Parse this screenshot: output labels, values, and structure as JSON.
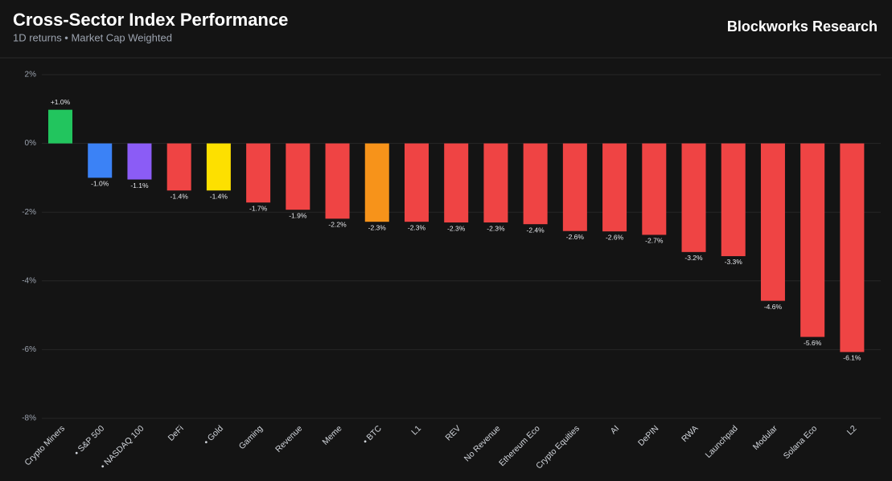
{
  "chart_data": {
    "type": "bar",
    "title": "Cross-Sector Index Performance",
    "subtitle": "1D returns • Market Cap Weighted",
    "brand": "Blockworks Research",
    "categories": [
      "Crypto Miners",
      "• S&P 500",
      "• NASDAQ 100",
      "DeFi",
      "• Gold",
      "Gaming",
      "Revenue",
      "Meme",
      "• BTC",
      "L1",
      "REV",
      "No Revenue",
      "Ethereum Eco",
      "Crypto Equities",
      "AI",
      "DePIN",
      "RWA",
      "Launchpad",
      "Modular",
      "Solana Eco",
      "L2"
    ],
    "values": [
      0.98,
      -1.0,
      -1.05,
      -1.37,
      -1.37,
      -1.72,
      -1.93,
      -2.19,
      -2.28,
      -2.28,
      -2.3,
      -2.3,
      -2.35,
      -2.55,
      -2.56,
      -2.66,
      -3.16,
      -3.28,
      -4.58,
      -5.63,
      -6.07
    ],
    "value_labels": [
      "+1.0%",
      "-1.0%",
      "-1.1%",
      "-1.4%",
      "-1.4%",
      "-1.7%",
      "-1.9%",
      "-2.2%",
      "-2.3%",
      "-2.3%",
      "-2.3%",
      "-2.3%",
      "-2.4%",
      "-2.6%",
      "-2.6%",
      "-2.7%",
      "-3.2%",
      "-3.3%",
      "-4.6%",
      "-5.6%",
      "-6.1%"
    ],
    "colors": [
      "#22c55e",
      "#3b82f6",
      "#8b5cf6",
      "#ef4444",
      "#fde000",
      "#ef4444",
      "#ef4444",
      "#ef4444",
      "#f7931a",
      "#ef4444",
      "#ef4444",
      "#ef4444",
      "#ef4444",
      "#ef4444",
      "#ef4444",
      "#ef4444",
      "#ef4444",
      "#ef4444",
      "#ef4444",
      "#ef4444",
      "#ef4444"
    ],
    "ylim": [
      -8,
      2
    ],
    "yticks": [
      {
        "value": 2,
        "label": "2%"
      },
      {
        "value": 0,
        "label": "0%"
      },
      {
        "value": -2,
        "label": "-2%"
      },
      {
        "value": -4,
        "label": "-4%"
      },
      {
        "value": -6,
        "label": "-6%"
      },
      {
        "value": -8,
        "label": "-8%"
      }
    ],
    "grid": true
  }
}
